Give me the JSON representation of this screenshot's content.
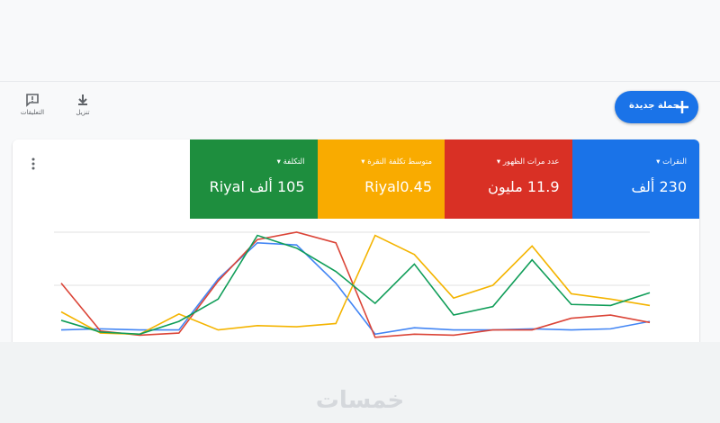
{
  "header": {
    "new_campaign": "حملة جديدة",
    "download": "تنزيل",
    "feedback": "التعليقات"
  },
  "metrics": [
    {
      "label": "النقرات",
      "value": "230 ألف",
      "color": "#1a73e8"
    },
    {
      "label": "عدد مرات الظهور",
      "value": "11.9 مليون",
      "color": "#d93025"
    },
    {
      "label": "متوسط تكلفة النقرة",
      "value": "Riyal0.45",
      "color": "#f9ab00"
    },
    {
      "label": "التكلفة",
      "value": "105 ألف Riyal",
      "color": "#1e8e3e"
    }
  ],
  "chart_data": {
    "type": "line",
    "categories": [
      null,
      null,
      null,
      null,
      null,
      null,
      null,
      null,
      null,
      null,
      null,
      null,
      null,
      null,
      null,
      null
    ],
    "series": [
      {
        "color": "#4285f4",
        "values": [
          8,
          9,
          8,
          8,
          56,
          90,
          88,
          52,
          4,
          10,
          8,
          8,
          9,
          8,
          9,
          16
        ]
      },
      {
        "color": "#db4437",
        "values": [
          52,
          7,
          3,
          5,
          54,
          93,
          100,
          90,
          1,
          4,
          3,
          8,
          8,
          19,
          22,
          15
        ]
      },
      {
        "color": "#f4b400",
        "values": [
          25,
          5,
          4,
          23,
          8,
          12,
          11,
          14,
          97,
          79,
          38,
          50,
          87,
          42,
          37,
          31
        ]
      },
      {
        "color": "#0f9d58",
        "values": [
          17,
          6,
          4,
          16,
          37,
          97,
          85,
          63,
          33,
          70,
          22,
          30,
          74,
          32,
          31,
          43
        ]
      }
    ],
    "ylim": [
      0,
      100
    ],
    "yticks": [
      50,
      100
    ],
    "grid": true
  },
  "watermark": "خمسات"
}
